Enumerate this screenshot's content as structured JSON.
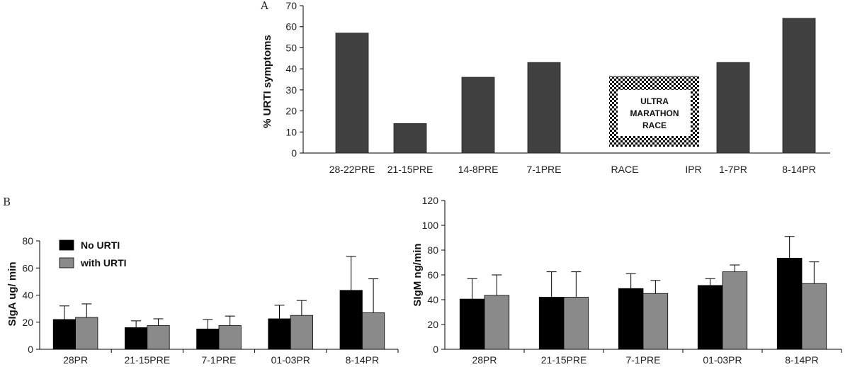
{
  "panels": {
    "a": "A",
    "b": "B"
  },
  "chart_data": [
    {
      "type": "bar",
      "title": "",
      "ylabel": "% URTI symptoms",
      "ylim": [
        0,
        70
      ],
      "yticks": [
        0,
        10,
        20,
        30,
        40,
        50,
        60,
        70
      ],
      "categories": [
        "28-22PRE",
        "21-15PRE",
        "14-8PRE",
        "7-1PRE",
        "RACE",
        "IPR",
        "1-7PR",
        "8-14PR"
      ],
      "values": [
        57,
        14,
        36,
        43,
        null,
        null,
        43,
        64
      ],
      "race_box": [
        "ULTRA",
        "MARATHON",
        "RACE"
      ],
      "bar_color": "#404040"
    },
    {
      "type": "bar",
      "ylabel": "SIgA ug/ min",
      "ylim": [
        0,
        80
      ],
      "yticks": [
        0,
        20,
        40,
        60,
        80
      ],
      "categories": [
        "28PR",
        "21-15PRE",
        "7-1PRE",
        "01-03PR",
        "8-14PR"
      ],
      "legend": [
        "No URTI",
        "with URTI"
      ],
      "series": [
        {
          "name": "No URTI",
          "color": "#000000",
          "values": [
            22,
            16,
            15,
            22.5,
            43.5
          ],
          "errors": [
            10,
            5,
            7,
            10,
            25
          ]
        },
        {
          "name": "with URTI",
          "color": "#8a8a8a",
          "values": [
            23.5,
            17.5,
            17.5,
            25,
            27
          ],
          "errors": [
            10,
            5,
            7,
            11,
            25
          ]
        }
      ]
    },
    {
      "type": "bar",
      "ylabel": "SIgM ng/min",
      "ylim": [
        0,
        120
      ],
      "yticks": [
        0,
        20,
        40,
        60,
        80,
        100,
        120
      ],
      "categories": [
        "28PR",
        "21-15PRE",
        "7-1PRE",
        "01-03PR",
        "8-14PR"
      ],
      "series": [
        {
          "name": "No URTI",
          "color": "#000000",
          "values": [
            40.5,
            42,
            49,
            51.5,
            73.5
          ],
          "errors": [
            16.5,
            20.5,
            12,
            5.5,
            17.5
          ]
        },
        {
          "name": "with URTI",
          "color": "#8a8a8a",
          "values": [
            43.5,
            42,
            45,
            62.5,
            53
          ],
          "errors": [
            16.5,
            20.5,
            10.5,
            5.5,
            17.5
          ]
        }
      ]
    }
  ]
}
